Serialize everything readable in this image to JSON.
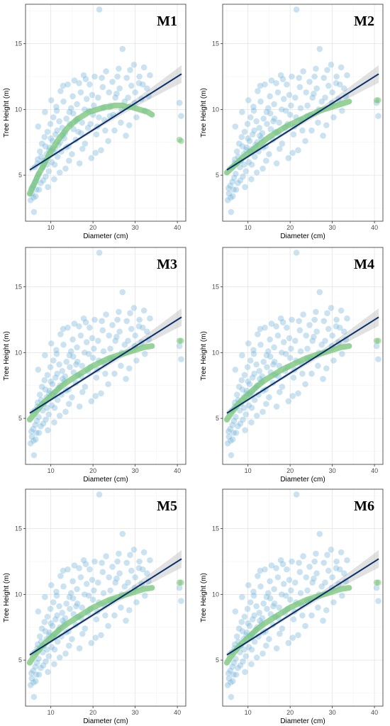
{
  "chart_data": {
    "type": "scatter",
    "xlabel": "Diameter (cm)",
    "ylabel": "Tree Height (m)",
    "xlim": [
      4,
      42
    ],
    "ylim": [
      1.5,
      18
    ],
    "x_ticks": [
      10,
      20,
      30,
      40
    ],
    "y_ticks": [
      5,
      10,
      15
    ],
    "grid": true,
    "colors": {
      "observed": "#6baed6",
      "linear_fit": "#08306b",
      "model_fit": "#74c476",
      "confidence_band": "#bdbdbd"
    },
    "linear_fit": {
      "x": [
        5,
        41
      ],
      "y": [
        5.4,
        12.7
      ]
    },
    "observations": [
      [
        5.2,
        3.1
      ],
      [
        5.5,
        3.6
      ],
      [
        5.8,
        4.2
      ],
      [
        6.0,
        2.2
      ],
      [
        6.2,
        5.6
      ],
      [
        6.4,
        3.4
      ],
      [
        6.7,
        4.8
      ],
      [
        6.9,
        6.2
      ],
      [
        7.1,
        5.1
      ],
      [
        7.4,
        6.8
      ],
      [
        7.6,
        4.4
      ],
      [
        7.9,
        7.4
      ],
      [
        8.1,
        5.6
      ],
      [
        8.3,
        6.1
      ],
      [
        8.5,
        7.9
      ],
      [
        8.8,
        4.9
      ],
      [
        9.0,
        6.6
      ],
      [
        9.2,
        8.3
      ],
      [
        9.5,
        5.3
      ],
      [
        9.7,
        7.1
      ],
      [
        9.9,
        8.9
      ],
      [
        10.2,
        6.0
      ],
      [
        10.4,
        7.6
      ],
      [
        10.6,
        9.4
      ],
      [
        10.9,
        5.8
      ],
      [
        11.1,
        8.1
      ],
      [
        11.3,
        10.2
      ],
      [
        11.6,
        6.4
      ],
      [
        11.8,
        7.3
      ],
      [
        12.0,
        9.1
      ],
      [
        12.3,
        11.4
      ],
      [
        12.5,
        6.8
      ],
      [
        12.7,
        8.6
      ],
      [
        13.0,
        10.6
      ],
      [
        13.2,
        7.8
      ],
      [
        13.5,
        5.5
      ],
      [
        13.7,
        9.3
      ],
      [
        14.0,
        11.9
      ],
      [
        14.2,
        7.2
      ],
      [
        14.5,
        8.9
      ],
      [
        14.8,
        10.1
      ],
      [
        15.0,
        6.6
      ],
      [
        15.3,
        9.7
      ],
      [
        15.6,
        12.2
      ],
      [
        15.9,
        7.7
      ],
      [
        16.2,
        10.4
      ],
      [
        16.5,
        8.3
      ],
      [
        16.8,
        5.9
      ],
      [
        17.1,
        11.3
      ],
      [
        17.4,
        9.0
      ],
      [
        17.8,
        12.6
      ],
      [
        18.1,
        7.4
      ],
      [
        18.5,
        10.8
      ],
      [
        18.8,
        8.6
      ],
      [
        19.2,
        11.9
      ],
      [
        19.6,
        6.3
      ],
      [
        20.0,
        9.6
      ],
      [
        20.4,
        12.5
      ],
      [
        20.8,
        8.1
      ],
      [
        21.2,
        10.9
      ],
      [
        21.5,
        17.6
      ],
      [
        21.9,
        6.9
      ],
      [
        22.3,
        11.7
      ],
      [
        22.7,
        9.2
      ],
      [
        23.1,
        12.9
      ],
      [
        23.6,
        7.6
      ],
      [
        24.1,
        10.3
      ],
      [
        24.6,
        12.1
      ],
      [
        25.1,
        8.4
      ],
      [
        25.6,
        11.2
      ],
      [
        26.1,
        13.1
      ],
      [
        26.6,
        9.0
      ],
      [
        27.0,
        14.6
      ],
      [
        27.5,
        10.6
      ],
      [
        28.0,
        12.4
      ],
      [
        28.6,
        8.8
      ],
      [
        29.1,
        11.8
      ],
      [
        29.7,
        13.4
      ],
      [
        30.3,
        9.4
      ],
      [
        30.9,
        12.0
      ],
      [
        31.5,
        10.8
      ],
      [
        32.1,
        13.2
      ],
      [
        32.8,
        11.6
      ],
      [
        33.5,
        12.6
      ],
      [
        40.5,
        10.5
      ],
      [
        40.9,
        9.5
      ],
      [
        6.6,
        3.9
      ],
      [
        7.0,
        8.7
      ],
      [
        8.6,
        9.8
      ],
      [
        9.3,
        4.1
      ],
      [
        10.1,
        10.7
      ],
      [
        10.8,
        4.7
      ],
      [
        11.4,
        9.9
      ],
      [
        12.1,
        5.2
      ],
      [
        12.9,
        11.8
      ],
      [
        13.4,
        8.2
      ],
      [
        14.3,
        6.1
      ],
      [
        15.2,
        11.0
      ],
      [
        16.0,
        9.1
      ],
      [
        16.7,
        12.0
      ],
      [
        17.5,
        7.0
      ],
      [
        18.3,
        12.3
      ],
      [
        19.0,
        9.9
      ],
      [
        19.8,
        11.1
      ],
      [
        20.6,
        6.7
      ],
      [
        21.4,
        9.4
      ],
      [
        22.1,
        12.4
      ],
      [
        22.9,
        8.4
      ],
      [
        23.8,
        11.3
      ],
      [
        24.8,
        9.6
      ],
      [
        25.8,
        12.5
      ],
      [
        26.8,
        10.0
      ],
      [
        27.8,
        8.0
      ],
      [
        28.8,
        13.0
      ],
      [
        29.9,
        10.5
      ],
      [
        31.0,
        12.5
      ],
      [
        32.3,
        9.9
      ],
      [
        33.2,
        11.0
      ],
      [
        5.4,
        4.0
      ],
      [
        5.9,
        3.3
      ],
      [
        6.3,
        4.5
      ],
      [
        6.8,
        5.9
      ],
      [
        7.2,
        3.9
      ],
      [
        7.7,
        6.4
      ],
      [
        8.2,
        4.6
      ],
      [
        8.7,
        7.2
      ],
      [
        9.1,
        5.8
      ],
      [
        9.6,
        6.9
      ],
      [
        10.0,
        7.8
      ],
      [
        10.5,
        6.8
      ],
      [
        11.0,
        7.0
      ],
      [
        11.5,
        8.4
      ],
      [
        12.2,
        7.5
      ],
      [
        12.8,
        8.0
      ],
      [
        13.6,
        7.1
      ],
      [
        14.4,
        9.8
      ],
      [
        15.4,
        8.5
      ],
      [
        16.3,
        9.3
      ],
      [
        17.2,
        8.2
      ],
      [
        18.0,
        10.0
      ],
      [
        19.4,
        8.9
      ],
      [
        20.2,
        10.3
      ],
      [
        21.0,
        8.7
      ],
      [
        22.5,
        10.1
      ],
      [
        24.0,
        9.5
      ],
      [
        25.3,
        10.9
      ],
      [
        26.3,
        11.6
      ],
      [
        28.3,
        10.9
      ],
      [
        30.0,
        11.3
      ],
      [
        31.8,
        11.9
      ]
    ],
    "panels": [
      {
        "label": "M1",
        "model_fit": {
          "x": [
            5,
            6,
            7,
            8,
            9,
            10,
            11,
            12,
            13,
            14,
            15,
            16,
            17,
            18,
            19,
            20,
            21,
            22,
            23,
            24,
            25,
            26,
            27,
            28,
            29,
            30,
            31,
            32,
            33,
            34
          ],
          "y": [
            3.6,
            4.3,
            5.0,
            5.6,
            6.2,
            6.8,
            7.3,
            7.8,
            8.2,
            8.6,
            8.9,
            9.2,
            9.4,
            9.6,
            9.8,
            9.9,
            10.0,
            10.1,
            10.2,
            10.2,
            10.3,
            10.3,
            10.3,
            10.2,
            10.2,
            10.1,
            10.0,
            9.9,
            9.8,
            9.6
          ]
        },
        "model_outliers": [
          [
            40.5,
            7.7
          ],
          [
            40.9,
            7.6
          ]
        ]
      },
      {
        "label": "M2",
        "model_fit": {
          "x": [
            5,
            7,
            9,
            11,
            13,
            15,
            17,
            19,
            21,
            23,
            25,
            27,
            29,
            31,
            33,
            34
          ],
          "y": [
            5.2,
            5.8,
            6.4,
            6.9,
            7.4,
            7.9,
            8.3,
            8.7,
            9.0,
            9.3,
            9.6,
            9.9,
            10.1,
            10.3,
            10.5,
            10.6
          ]
        },
        "model_outliers": [
          [
            40.5,
            10.7
          ],
          [
            40.9,
            10.7
          ]
        ]
      },
      {
        "label": "M3",
        "model_fit": {
          "x": [
            5,
            6,
            7,
            8,
            9,
            10,
            12,
            14,
            16,
            18,
            20,
            22,
            24,
            26,
            28,
            30,
            32,
            34
          ],
          "y": [
            4.9,
            5.3,
            5.7,
            6.1,
            6.4,
            6.7,
            7.3,
            7.8,
            8.2,
            8.6,
            9.0,
            9.3,
            9.6,
            9.8,
            10.0,
            10.2,
            10.4,
            10.5
          ]
        },
        "model_outliers": [
          [
            40.5,
            10.9
          ],
          [
            40.9,
            10.9
          ]
        ]
      },
      {
        "label": "M4",
        "model_fit": {
          "x": [
            5,
            6,
            7,
            8,
            9,
            10,
            12,
            14,
            16,
            18,
            20,
            22,
            24,
            26,
            28,
            30,
            32,
            34
          ],
          "y": [
            4.9,
            5.4,
            5.8,
            6.2,
            6.5,
            6.8,
            7.4,
            7.9,
            8.3,
            8.7,
            9.0,
            9.3,
            9.6,
            9.8,
            10.0,
            10.2,
            10.4,
            10.5
          ]
        },
        "model_outliers": [
          [
            40.5,
            10.9
          ],
          [
            40.9,
            10.9
          ]
        ]
      },
      {
        "label": "M5",
        "model_fit": {
          "x": [
            5,
            6,
            7,
            8,
            9,
            10,
            12,
            14,
            16,
            18,
            20,
            22,
            24,
            26,
            28,
            30,
            32,
            34
          ],
          "y": [
            4.8,
            5.3,
            5.7,
            6.1,
            6.4,
            6.7,
            7.3,
            7.8,
            8.2,
            8.6,
            9.0,
            9.3,
            9.6,
            9.8,
            10.0,
            10.2,
            10.4,
            10.5
          ]
        },
        "model_outliers": [
          [
            40.5,
            10.9
          ],
          [
            40.9,
            10.9
          ]
        ]
      },
      {
        "label": "M6",
        "model_fit": {
          "x": [
            5,
            6,
            7,
            8,
            9,
            10,
            12,
            14,
            16,
            18,
            20,
            22,
            24,
            26,
            28,
            30,
            32,
            34
          ],
          "y": [
            4.8,
            5.3,
            5.7,
            6.1,
            6.4,
            6.7,
            7.3,
            7.8,
            8.2,
            8.6,
            9.0,
            9.3,
            9.6,
            9.8,
            10.0,
            10.2,
            10.4,
            10.5
          ]
        },
        "model_outliers": [
          [
            40.5,
            10.9
          ],
          [
            40.9,
            10.9
          ]
        ]
      }
    ]
  }
}
